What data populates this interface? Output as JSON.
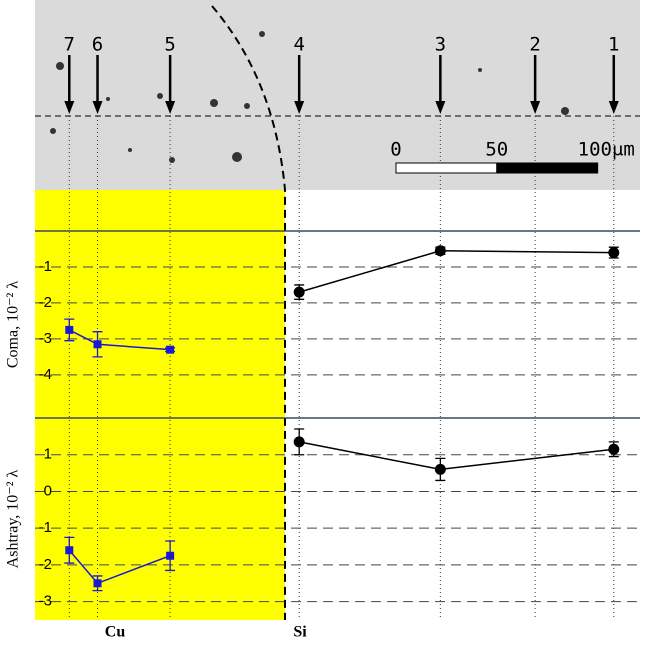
{
  "micrograph": {
    "marker_labels": [
      "7",
      "6",
      "5",
      "4",
      "3",
      "2",
      "1"
    ],
    "marker_x": [
      -162,
      -148,
      -112,
      -48,
      22,
      69,
      108
    ],
    "xlim": [
      -179,
      121
    ],
    "scale_ticks": [
      0,
      50,
      {
        "value": 100,
        "label": "100μm"
      }
    ]
  },
  "regions": {
    "left": "Cu",
    "right": "Si"
  },
  "chart_data": [
    {
      "type": "scatter",
      "ylabel": "Coma, 10⁻² λ",
      "xlim": [
        -179,
        121
      ],
      "ylim": [
        -5.2,
        0
      ],
      "yticks": [
        -1,
        -2,
        -3,
        -4
      ],
      "grid": true,
      "series": [
        {
          "color": "#1a1ad0",
          "marker": "square",
          "x": [
            -162,
            -148,
            -112
          ],
          "values": [
            -2.75,
            -3.15,
            -3.3
          ],
          "errors": [
            0.3,
            0.35,
            0.05
          ]
        },
        {
          "color": "#000000",
          "marker": "circle",
          "x": [
            -48,
            22,
            108
          ],
          "values": [
            -1.7,
            -0.55,
            -0.6
          ],
          "errors": [
            0.2,
            0.1,
            0.15
          ]
        }
      ]
    },
    {
      "type": "scatter",
      "ylabel": "Ashtray, 10⁻² λ",
      "xlim": [
        -179,
        121
      ],
      "ylim": [
        -3.5,
        2
      ],
      "yticks": [
        1,
        0,
        -1,
        -2,
        -3
      ],
      "grid": true,
      "series": [
        {
          "color": "#1a1ad0",
          "marker": "square",
          "x": [
            -162,
            -148,
            -112
          ],
          "values": [
            -1.6,
            -2.5,
            -1.75
          ],
          "errors": [
            0.35,
            0.2,
            0.4
          ]
        },
        {
          "color": "#000000",
          "marker": "circle",
          "x": [
            -48,
            22,
            108
          ],
          "values": [
            1.35,
            0.6,
            1.15
          ],
          "errors": [
            0.35,
            0.3,
            0.2
          ]
        }
      ]
    }
  ]
}
